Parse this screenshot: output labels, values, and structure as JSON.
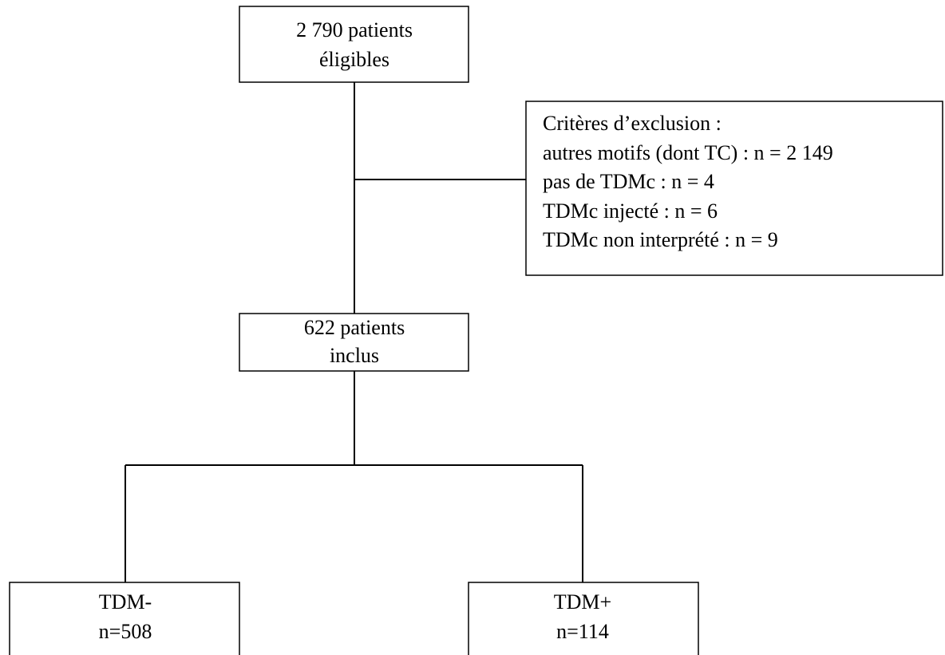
{
  "nodes": [
    {
      "lines": [
        "2 790 patients",
        "éligibles"
      ]
    },
    {
      "lines": [
        "Critères d’exclusion :",
        "autres motifs (dont TC) : n = 2 149",
        "pas de TDMc : n = 4",
        "TDMc injecté : n = 6",
        "TDMc non interprété : n = 9"
      ]
    },
    {
      "lines": [
        "622 patients",
        "inclus"
      ]
    },
    {
      "lines": [
        "TDM-",
        "n=508"
      ]
    },
    {
      "lines": [
        "TDM+",
        "n=114"
      ]
    }
  ]
}
